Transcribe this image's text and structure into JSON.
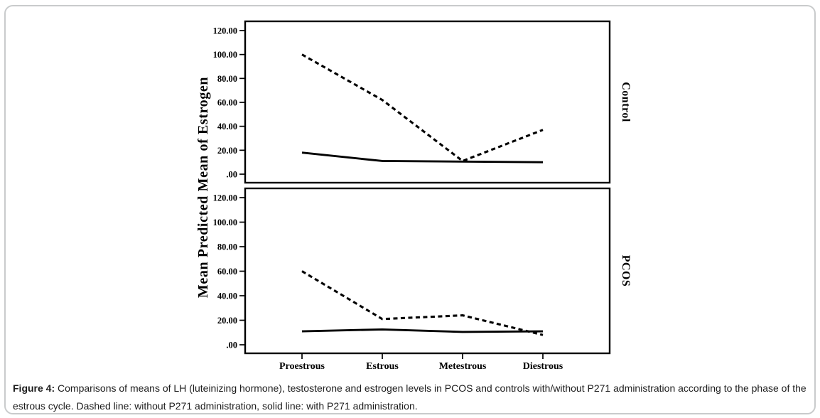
{
  "figure": {
    "caption_label": "Figure 4:",
    "caption_text": " Comparisons of means of LH (luteinizing hormone), testosterone and estrogen levels in PCOS and controls with/without P271 administration according to the phase of the estrous cycle. Dashed line: without P271 administration, solid line: with P271 administration."
  },
  "chart_data": {
    "type": "line",
    "title": "",
    "xlabel": "",
    "ylabel": "Mean Predicted Mean of Estrogen",
    "categories": [
      "Proestrous",
      "Estrous",
      "Metestrous",
      "Diestrous"
    ],
    "ylim": [
      0,
      120
    ],
    "ytick_values": [
      0,
      20,
      40,
      60,
      80,
      100,
      120
    ],
    "ytick_labels": [
      ".00",
      "20.00",
      "40.00",
      "60.00",
      "80.00",
      "100.00",
      "120.00"
    ],
    "grid": "off",
    "legend": "none (line styles explained in caption)",
    "line_color": "#000000",
    "panels": [
      {
        "label": "Control",
        "series": [
          {
            "name": "without P271 administration",
            "style": "dashed",
            "values": [
              100,
              62,
              11,
              37
            ]
          },
          {
            "name": "with P271 administration",
            "style": "solid",
            "values": [
              18,
              11,
              10.5,
              10
            ]
          }
        ]
      },
      {
        "label": "PCOS",
        "series": [
          {
            "name": "without P271 administration",
            "style": "dashed",
            "values": [
              60,
              21,
              24,
              8
            ]
          },
          {
            "name": "with P271 administration",
            "style": "solid",
            "values": [
              11,
              12.5,
              10.5,
              11
            ]
          }
        ]
      }
    ]
  }
}
